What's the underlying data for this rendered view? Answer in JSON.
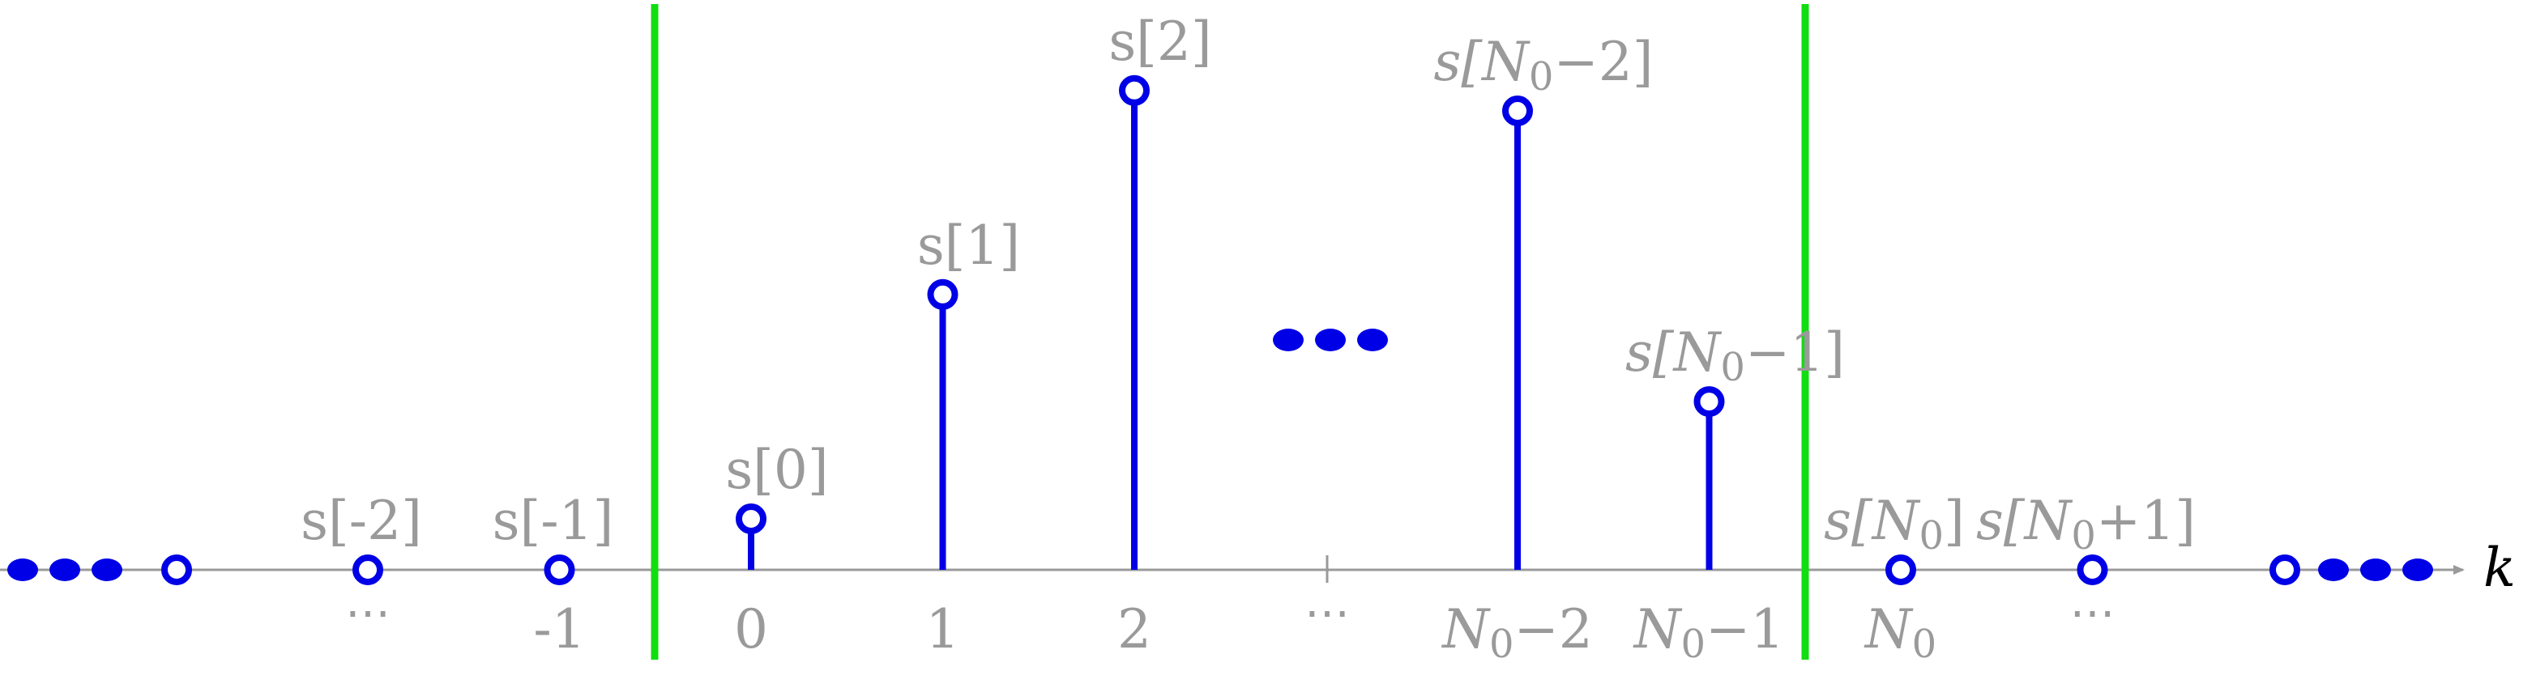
{
  "colors": {
    "axis": "#9a9a9a",
    "stem": "#0000e6",
    "boundary": "#11dd11",
    "text": "#9a9a9a",
    "dots": "#0000e6"
  },
  "axis": {
    "name": "k"
  },
  "samples": [
    {
      "id": "s-minus-2",
      "k": -2,
      "value": 0,
      "label": "s[-2]",
      "tick": "⋯"
    },
    {
      "id": "s-minus-1",
      "k": -1,
      "value": 0,
      "label": "s[-1]",
      "tick": "-1"
    },
    {
      "id": "s-0",
      "k": 0,
      "value": 1,
      "label": "s[0]",
      "tick": "0"
    },
    {
      "id": "s-1",
      "k": 1,
      "value": 5.4,
      "label": "s[1]",
      "tick": "1"
    },
    {
      "id": "s-2",
      "k": 2,
      "value": 9.4,
      "label": "s[2]",
      "tick": "2"
    },
    {
      "id": "s-N0-2",
      "k": 4,
      "value": 9,
      "label_prefix": "s[",
      "label_sym": "N",
      "label_sub": "0",
      "label_suffix": "−2]",
      "tick_sym": "N",
      "tick_sub": "0",
      "tick_suffix": "−2"
    },
    {
      "id": "s-N0-1",
      "k": 5,
      "value": 3.3,
      "label_prefix": "s[",
      "label_sym": "N",
      "label_sub": "0",
      "label_suffix": "−1]",
      "tick_sym": "N",
      "tick_sub": "0",
      "tick_suffix": "−1"
    },
    {
      "id": "s-N0",
      "k": 6,
      "value": 0,
      "label_prefix": "s[",
      "label_sym": "N",
      "label_sub": "0",
      "label_suffix": "]",
      "tick_sym": "N",
      "tick_sub": "0",
      "tick_suffix": ""
    },
    {
      "id": "s-N0+1",
      "k": 7,
      "value": 0,
      "label_prefix": "s[",
      "label_sym": "N",
      "label_sub": "0",
      "label_suffix": "+1]",
      "tick": "⋯"
    }
  ],
  "middle_tick": "⋯",
  "period_boundaries": [
    "left-boundary",
    "right-boundary"
  ]
}
